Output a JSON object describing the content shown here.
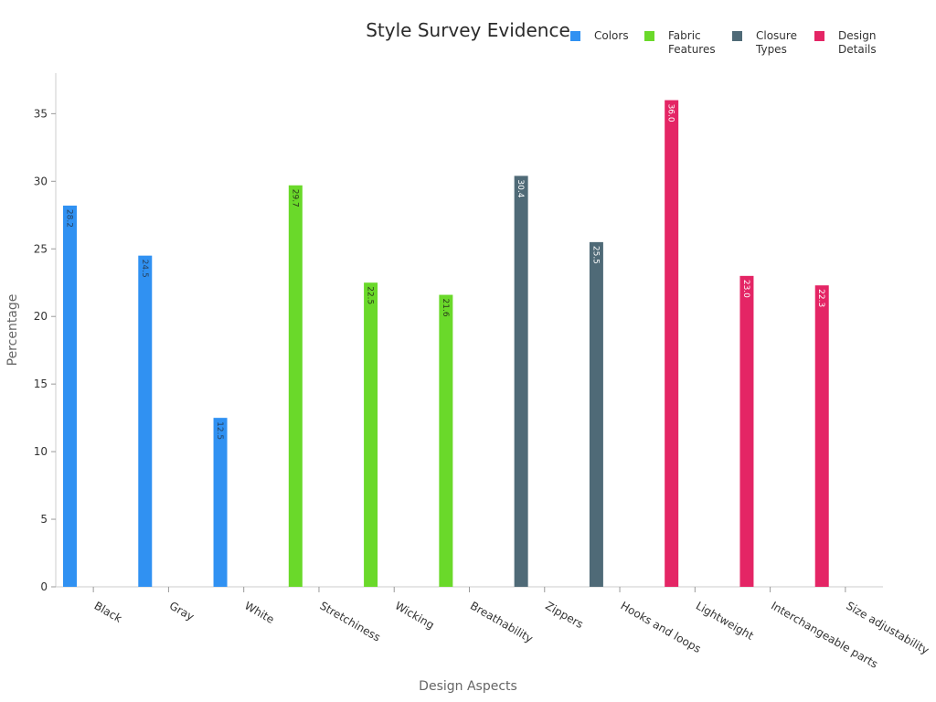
{
  "chart_data": {
    "type": "bar",
    "title": "Style Survey Evidence",
    "xlabel": "Design Aspects",
    "ylabel": "Percentage",
    "ylim": [
      0,
      38
    ],
    "yticks": [
      0,
      5,
      10,
      15,
      20,
      25,
      30,
      35
    ],
    "grid": false,
    "legend_position": "top-right",
    "categories": [
      "Black",
      "Gray",
      "White",
      "Stretchiness",
      "Wicking",
      "Breathability",
      "Zippers",
      "Hooks and loops",
      "Lightweight",
      "Interchangeable parts",
      "Size adjustability"
    ],
    "series": [
      {
        "name": "Colors",
        "legend_lines": [
          "Colors"
        ],
        "color": "#3091f2",
        "values": [
          28.2,
          24.5,
          12.5,
          null,
          null,
          null,
          null,
          null,
          null,
          null,
          null
        ],
        "labels": [
          "28.2",
          "24.5",
          "12.5",
          null,
          null,
          null,
          null,
          null,
          null,
          null,
          null
        ]
      },
      {
        "name": "Fabric Features",
        "legend_lines": [
          "Fabric",
          "Features"
        ],
        "color": "#6ad92a",
        "values": [
          null,
          null,
          null,
          29.7,
          22.5,
          21.6,
          null,
          null,
          null,
          null,
          null
        ],
        "labels": [
          null,
          null,
          null,
          "29.7",
          "22.5",
          "21.6",
          null,
          null,
          null,
          null,
          null
        ]
      },
      {
        "name": "Closure Types",
        "legend_lines": [
          "Closure",
          "Types"
        ],
        "color": "#4f6a77",
        "values": [
          null,
          null,
          null,
          null,
          null,
          null,
          30.4,
          25.5,
          null,
          null,
          null
        ],
        "labels": [
          null,
          null,
          null,
          null,
          null,
          null,
          "30.4",
          "25.5",
          null,
          null,
          null
        ]
      },
      {
        "name": "Design Details",
        "legend_lines": [
          "Design",
          "Details"
        ],
        "color": "#e42565",
        "values": [
          null,
          null,
          null,
          null,
          null,
          null,
          null,
          null,
          36.0,
          23.0,
          22.3
        ],
        "labels": [
          null,
          null,
          null,
          null,
          null,
          null,
          null,
          null,
          "36.0",
          "23.0",
          "22.3"
        ]
      }
    ]
  }
}
